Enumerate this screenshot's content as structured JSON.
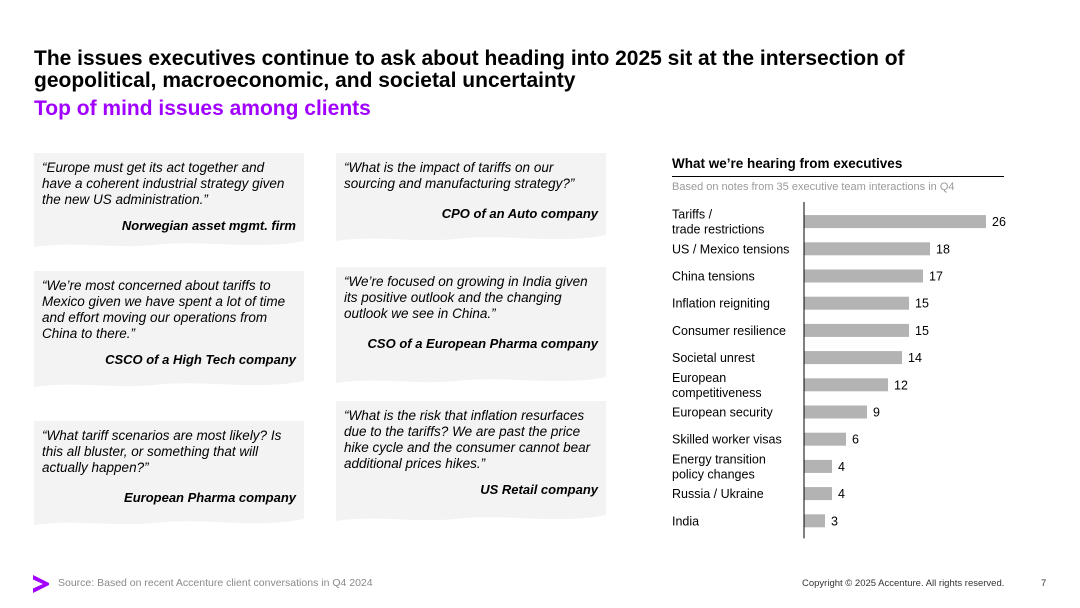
{
  "header": {
    "title": "The issues executives continue to ask about heading into 2025 sit at the intersection of geopolitical, macroeconomic, and societal uncertainty",
    "subtitle": "Top of mind issues among clients"
  },
  "quotes": [
    {
      "text": "“Europe must get its act together and have a coherent industrial strategy given the new US administration.”",
      "source": "Norwegian asset mgmt. firm"
    },
    {
      "text": "“What is the impact of tariffs on our sourcing and manufacturing strategy?”",
      "source": "CPO of an Auto company"
    },
    {
      "text": "“We’re most concerned about tariffs to Mexico given we have spent a lot of time and effort moving our operations from China to there.”",
      "source": "CSCO of a High Tech company"
    },
    {
      "text": "“We’re focused on growing in India given its positive outlook and the changing outlook we see in China.”",
      "source": "CSO of a European Pharma company"
    },
    {
      "text": "“What tariff scenarios are most likely? Is this all bluster, or something that will actually happen?”",
      "source": "European Pharma company"
    },
    {
      "text": "“What is the risk that inflation resurfaces due to the tariffs? We are past the price hike cycle and the consumer cannot bear additional prices hikes.”",
      "source": "US Retail company"
    }
  ],
  "chart_header": {
    "title": "What we’re hearing from executives",
    "note": "Based on notes from 35 executive team interactions in Q4"
  },
  "chart_data": {
    "type": "bar",
    "orientation": "horizontal",
    "categories": [
      "Tariffs / trade restrictions",
      "US / Mexico tensions",
      "China tensions",
      "Inflation reigniting",
      "Consumer resilience",
      "Societal unrest",
      "European competitiveness",
      "European security",
      "Skilled worker visas",
      "Energy transition policy changes",
      "Russia / Ukraine",
      "India"
    ],
    "label_lines": [
      [
        "Tariffs /",
        "trade restrictions"
      ],
      [
        "US / Mexico tensions"
      ],
      [
        "China tensions"
      ],
      [
        "Inflation reigniting"
      ],
      [
        "Consumer resilience"
      ],
      [
        "Societal unrest"
      ],
      [
        "European",
        "competitiveness"
      ],
      [
        "European security"
      ],
      [
        "Skilled worker visas"
      ],
      [
        "Energy transition",
        "policy changes"
      ],
      [
        "Russia / Ukraine"
      ],
      [
        "India"
      ]
    ],
    "values": [
      26,
      18,
      17,
      15,
      15,
      14,
      12,
      9,
      6,
      4,
      4,
      3
    ],
    "bar_color": "#b3b3b3",
    "xlim": [
      0,
      26
    ]
  },
  "footer": {
    "source": "Source: Based on recent Accenture client conversations in Q4 2024",
    "copyright": "Copyright © 2025 Accenture. All rights reserved.",
    "page": "7",
    "logo_color": "#a100ff"
  }
}
